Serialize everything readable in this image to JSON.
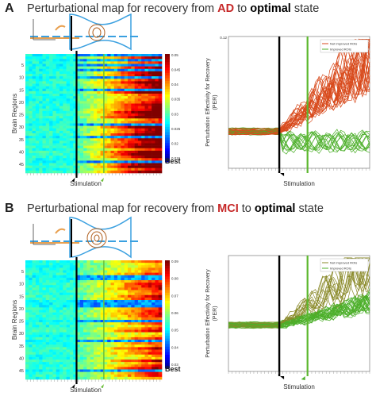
{
  "panels": [
    {
      "letter": "A",
      "title_pre": "Perturbational map for recovery from ",
      "title_disease": "AD",
      "title_mid": " to ",
      "title_target": "optimal",
      "title_post": " state",
      "heatmap_ylabel": "Brain Regions",
      "heatmap_xlabel": "Stimulation",
      "heatmap_yticks": [
        "5",
        "10",
        "15",
        "20",
        "25",
        "30",
        "35",
        "40",
        "45"
      ],
      "colorbar_ticks": [
        "0.05",
        "0.045",
        "0.04",
        "0.035",
        "0.03",
        "0.025",
        "0.02",
        "0.015"
      ],
      "colorbar_best": "Best",
      "line_ylabel": "Perturbation Effectivity for Recovery (PER)",
      "line_xlabel": "Stimulation",
      "line_ytick_top": "0.12",
      "legend": [
        "Not Improved ROIs",
        "Improved ROIs"
      ]
    },
    {
      "letter": "B",
      "title_pre": "Perturbational map for recovery from ",
      "title_disease": "MCI",
      "title_mid": " to ",
      "title_target": "optimal",
      "title_post": " state",
      "heatmap_ylabel": "Brain Regions",
      "heatmap_xlabel": "Stimulation",
      "heatmap_yticks": [
        "5",
        "10",
        "15",
        "20",
        "25",
        "30",
        "35",
        "40",
        "45"
      ],
      "colorbar_ticks": [
        "0.09",
        "0.08",
        "0.07",
        "0.06",
        "0.05",
        "0.04",
        "0.03"
      ],
      "colorbar_best": "Best",
      "line_ylabel": "Perturbation Effectivity for Recovery (PER)",
      "line_xlabel": "Stimulation",
      "legend": [
        "Not Improved ROIs",
        "Improved ROIs"
      ]
    }
  ],
  "colors": {
    "not_improved": "#d84a1c",
    "improved": "#4caf2a",
    "stim_line": "#000000",
    "highlight_line": "#5cb82e",
    "schematic": "#3aa0e0"
  }
}
